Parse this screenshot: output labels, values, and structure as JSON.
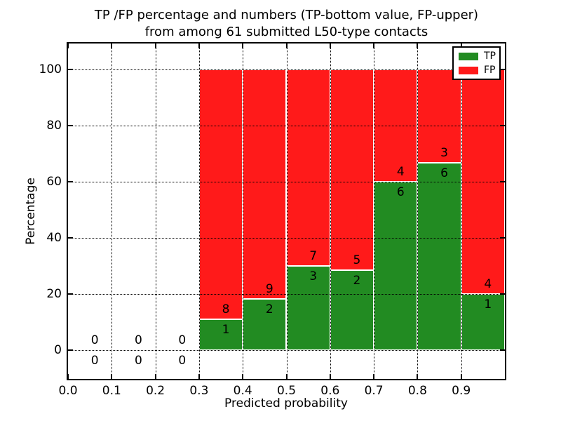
{
  "figure": {
    "title_line1": "TP /FP percentage and numbers (TP-bottom value, FP-upper)",
    "title_line2": "from among 61 submitted L50-type contacts"
  },
  "chart_data": {
    "type": "bar",
    "stacked": true,
    "title": "TP /FP percentage and numbers (TP-bottom value, FP-upper)\nfrom among 61 submitted L50-type contacts",
    "xlabel": "Predicted probability",
    "ylabel": "Percentage",
    "xlim": [
      0.0,
      1.0
    ],
    "ylim": [
      -10,
      109
    ],
    "x_tick_labels": [
      "0.0",
      "0.1",
      "0.2",
      "0.3",
      "0.4",
      "0.5",
      "0.6",
      "0.7",
      "0.8",
      "0.9"
    ],
    "y_tick_values": [
      0,
      20,
      40,
      60,
      80,
      100
    ],
    "bin_edges": [
      0.0,
      0.1,
      0.2,
      0.3,
      0.4,
      0.5,
      0.6,
      0.7,
      0.8,
      0.9,
      1.0
    ],
    "total_contacts": 61,
    "grid": true,
    "grid_style": "dotted",
    "series": [
      {
        "name": "TP",
        "color": "#228b22",
        "counts": [
          0,
          0,
          0,
          1,
          2,
          3,
          2,
          6,
          6,
          1
        ],
        "percent": [
          0,
          0,
          0,
          11.1,
          18.2,
          30.0,
          28.6,
          60.0,
          66.7,
          20.0
        ]
      },
      {
        "name": "FP",
        "color": "#ff1a1a",
        "counts": [
          0,
          0,
          0,
          8,
          9,
          7,
          5,
          4,
          3,
          4
        ],
        "percent": [
          0,
          0,
          0,
          88.9,
          81.8,
          70.0,
          71.4,
          40.0,
          33.3,
          80.0
        ]
      }
    ],
    "legend": {
      "position": "upper right",
      "entries": [
        {
          "label": "TP",
          "color": "#228b22"
        },
        {
          "label": "FP",
          "color": "#ff1a1a"
        }
      ]
    }
  }
}
